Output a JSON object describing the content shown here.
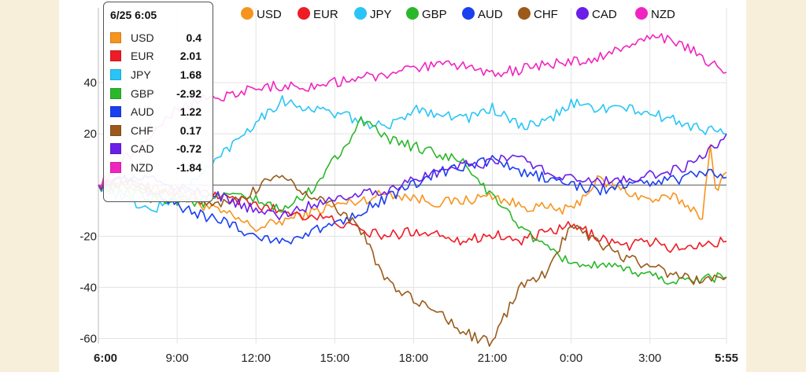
{
  "chart_data": {
    "type": "line",
    "x_ticks": [
      "6:00",
      "9:00",
      "12:00",
      "15:00",
      "18:00",
      "21:00",
      "0:00",
      "3:00",
      "5:55"
    ],
    "x_range_hours": [
      0,
      23.9167
    ],
    "ylim": [
      -62,
      60
    ],
    "y_ticks": [
      -60,
      -40,
      -20,
      20,
      40
    ],
    "zero_line": true,
    "grid": true,
    "legend_position": "top",
    "series": [
      {
        "name": "USD",
        "color": "#f7941d",
        "points": [
          [
            0,
            0
          ],
          [
            1,
            1
          ],
          [
            2,
            -2
          ],
          [
            3,
            -3
          ],
          [
            4,
            -8
          ],
          [
            5,
            -12
          ],
          [
            6,
            -17
          ],
          [
            7,
            -14
          ],
          [
            8,
            -11
          ],
          [
            9,
            -8
          ],
          [
            10,
            -6
          ],
          [
            11,
            -3
          ],
          [
            12,
            -5
          ],
          [
            13,
            -7
          ],
          [
            14,
            -6
          ],
          [
            15,
            -4
          ],
          [
            16,
            -8
          ],
          [
            17,
            -9
          ],
          [
            18,
            -10
          ],
          [
            19,
            2
          ],
          [
            20,
            -2
          ],
          [
            21,
            -6
          ],
          [
            22,
            -5
          ],
          [
            23,
            -12
          ],
          [
            23.3,
            14
          ],
          [
            23.5,
            -2
          ],
          [
            23.7,
            2
          ],
          [
            23.9167,
            5
          ]
        ]
      },
      {
        "name": "EUR",
        "color": "#ee1c25",
        "points": [
          [
            0,
            0
          ],
          [
            1,
            1
          ],
          [
            2,
            -1
          ],
          [
            3,
            -2
          ],
          [
            4,
            -3
          ],
          [
            5,
            -5
          ],
          [
            6,
            -8
          ],
          [
            7,
            -10
          ],
          [
            8,
            -12
          ],
          [
            9,
            -14
          ],
          [
            10,
            -18
          ],
          [
            11,
            -20
          ],
          [
            12,
            -18
          ],
          [
            13,
            -19
          ],
          [
            14,
            -22
          ],
          [
            15,
            -19
          ],
          [
            16,
            -22
          ],
          [
            17,
            -19
          ],
          [
            18,
            -16
          ],
          [
            19,
            -20
          ],
          [
            20,
            -24
          ],
          [
            21,
            -22
          ],
          [
            22,
            -25
          ],
          [
            23,
            -23
          ],
          [
            23.9167,
            -22
          ]
        ]
      },
      {
        "name": "JPY",
        "color": "#29c5f6",
        "points": [
          [
            0,
            0
          ],
          [
            1,
            -5
          ],
          [
            2,
            -10
          ],
          [
            3,
            -5
          ],
          [
            4,
            5
          ],
          [
            5,
            15
          ],
          [
            6,
            25
          ],
          [
            7,
            33
          ],
          [
            8,
            30
          ],
          [
            9,
            28
          ],
          [
            10,
            25
          ],
          [
            11,
            22
          ],
          [
            12,
            30
          ],
          [
            13,
            28
          ],
          [
            14,
            26
          ],
          [
            15,
            30
          ],
          [
            16,
            23
          ],
          [
            17,
            24
          ],
          [
            18,
            32
          ],
          [
            19,
            30
          ],
          [
            20,
            30
          ],
          [
            21,
            28
          ],
          [
            22,
            25
          ],
          [
            23,
            22
          ],
          [
            23.9167,
            20
          ]
        ]
      },
      {
        "name": "GBP",
        "color": "#2ab82a",
        "points": [
          [
            0,
            0
          ],
          [
            1,
            -3
          ],
          [
            2,
            -5
          ],
          [
            3,
            -6
          ],
          [
            4,
            -7
          ],
          [
            5,
            -4
          ],
          [
            6,
            -6
          ],
          [
            7,
            -10
          ],
          [
            8,
            -3
          ],
          [
            9,
            10
          ],
          [
            10,
            25
          ],
          [
            11,
            18
          ],
          [
            12,
            15
          ],
          [
            13,
            12
          ],
          [
            14,
            8
          ],
          [
            15,
            -5
          ],
          [
            16,
            -15
          ],
          [
            17,
            -25
          ],
          [
            18,
            -30
          ],
          [
            19,
            -32
          ],
          [
            20,
            -33
          ],
          [
            21,
            -35
          ],
          [
            22,
            -38
          ],
          [
            23,
            -36
          ],
          [
            23.9167,
            -36
          ]
        ]
      },
      {
        "name": "AUD",
        "color": "#1a3ff0",
        "points": [
          [
            0,
            0
          ],
          [
            1,
            2
          ],
          [
            2,
            -3
          ],
          [
            3,
            -8
          ],
          [
            4,
            -12
          ],
          [
            5,
            -15
          ],
          [
            6,
            -20
          ],
          [
            7,
            -22
          ],
          [
            8,
            -19
          ],
          [
            9,
            -15
          ],
          [
            10,
            -10
          ],
          [
            11,
            -5
          ],
          [
            12,
            0
          ],
          [
            13,
            5
          ],
          [
            14,
            7
          ],
          [
            15,
            10
          ],
          [
            16,
            5
          ],
          [
            17,
            3
          ],
          [
            18,
            0
          ],
          [
            19,
            -2
          ],
          [
            20,
            0
          ],
          [
            21,
            1
          ],
          [
            22,
            2
          ],
          [
            23,
            5
          ],
          [
            23.9167,
            3
          ]
        ]
      },
      {
        "name": "CHF",
        "color": "#9b5a1a",
        "points": [
          [
            0,
            0
          ],
          [
            1,
            -1
          ],
          [
            2,
            -2
          ],
          [
            3,
            -4
          ],
          [
            4,
            -6
          ],
          [
            5,
            -8
          ],
          [
            6,
            -2
          ],
          [
            7,
            5
          ],
          [
            8,
            -5
          ],
          [
            9,
            -8
          ],
          [
            10,
            -18
          ],
          [
            11,
            -38
          ],
          [
            12,
            -45
          ],
          [
            13,
            -50
          ],
          [
            14,
            -58
          ],
          [
            15,
            -62
          ],
          [
            16,
            -40
          ],
          [
            17,
            -35
          ],
          [
            18,
            -15
          ],
          [
            19,
            -22
          ],
          [
            20,
            -28
          ],
          [
            21,
            -32
          ],
          [
            22,
            -35
          ],
          [
            23,
            -38
          ],
          [
            23.9167,
            -36
          ]
        ]
      },
      {
        "name": "CAD",
        "color": "#6a1ee8",
        "points": [
          [
            0,
            0
          ],
          [
            1,
            2
          ],
          [
            2,
            3
          ],
          [
            3,
            -1
          ],
          [
            4,
            -3
          ],
          [
            5,
            -6
          ],
          [
            6,
            -10
          ],
          [
            7,
            -12
          ],
          [
            8,
            -8
          ],
          [
            9,
            -5
          ],
          [
            10,
            -3
          ],
          [
            11,
            -2
          ],
          [
            12,
            2
          ],
          [
            13,
            5
          ],
          [
            14,
            8
          ],
          [
            15,
            9
          ],
          [
            16,
            12
          ],
          [
            17,
            5
          ],
          [
            18,
            3
          ],
          [
            19,
            1
          ],
          [
            20,
            2
          ],
          [
            21,
            4
          ],
          [
            22,
            6
          ],
          [
            23,
            10
          ],
          [
            23.9167,
            20
          ]
        ]
      },
      {
        "name": "NZD",
        "color": "#f025c0",
        "points": [
          [
            0,
            0
          ],
          [
            1,
            10
          ],
          [
            2,
            20
          ],
          [
            3,
            30
          ],
          [
            4,
            34
          ],
          [
            5,
            35
          ],
          [
            6,
            38
          ],
          [
            7,
            39
          ],
          [
            8,
            38
          ],
          [
            9,
            40
          ],
          [
            10,
            42
          ],
          [
            11,
            43
          ],
          [
            12,
            45
          ],
          [
            13,
            47
          ],
          [
            14,
            46
          ],
          [
            15,
            44
          ],
          [
            16,
            45
          ],
          [
            17,
            47
          ],
          [
            18,
            48
          ],
          [
            19,
            50
          ],
          [
            20,
            53
          ],
          [
            21,
            58
          ],
          [
            22,
            56
          ],
          [
            23,
            50
          ],
          [
            23.9167,
            44
          ]
        ]
      }
    ]
  },
  "tooltip": {
    "title": "6/25 6:05",
    "rows": [
      {
        "name": "USD",
        "value": "0.4",
        "color": "#f7941d"
      },
      {
        "name": "EUR",
        "value": "2.01",
        "color": "#ee1c25"
      },
      {
        "name": "JPY",
        "value": "1.68",
        "color": "#29c5f6"
      },
      {
        "name": "GBP",
        "value": "-2.92",
        "color": "#2ab82a"
      },
      {
        "name": "AUD",
        "value": "1.22",
        "color": "#1a3ff0"
      },
      {
        "name": "CHF",
        "value": "0.17",
        "color": "#9b5a1a"
      },
      {
        "name": "CAD",
        "value": "-0.72",
        "color": "#6a1ee8"
      },
      {
        "name": "NZD",
        "value": "-1.84",
        "color": "#f025c0"
      }
    ]
  }
}
